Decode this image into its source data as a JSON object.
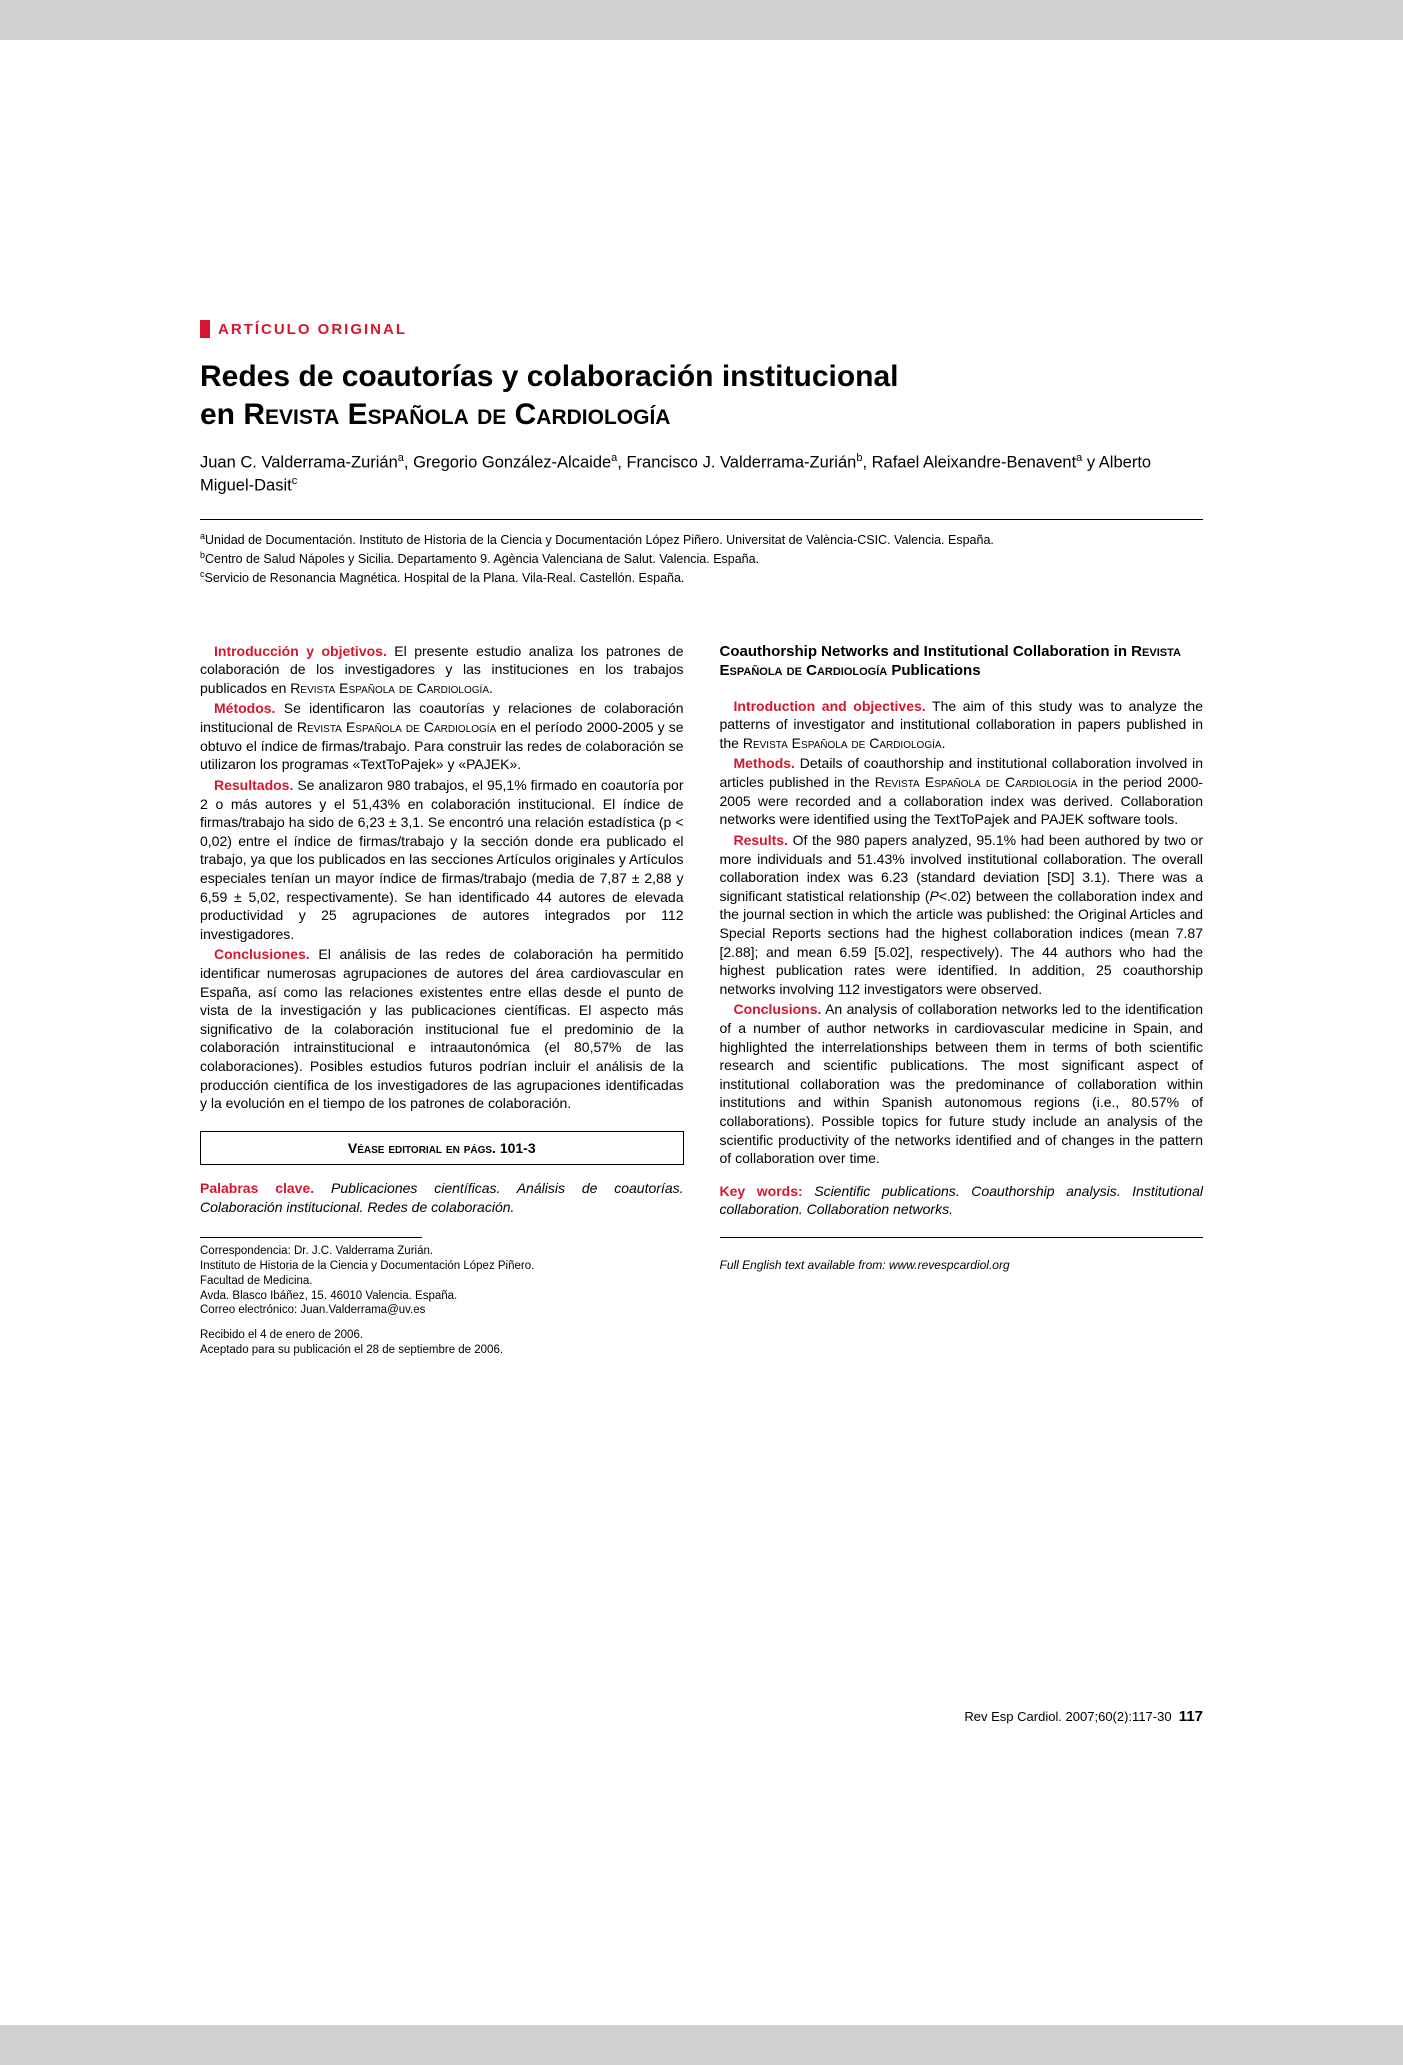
{
  "section_label": "ARTÍCULO ORIGINAL",
  "title_line1": "Redes de coautorías y colaboración institucional",
  "title_line2_prefix": "en ",
  "title_line2_journal": "Revista Española de Cardiología",
  "authors_html": "Juan C. Valderrama-Zurián<sup>a</sup>, Gregorio González-Alcaide<sup>a</sup>, Francisco J. Valderrama-Zurián<sup>b</sup>, Rafael Aleixandre-Benavent<sup>a</sup> y Alberto Miguel-Dasit<sup>c</sup>",
  "affiliations": [
    "<sup>a</sup>Unidad de Documentación. Instituto de Historia de la Ciencia y Documentación López Piñero. Universitat de València-CSIC. Valencia. España.",
    "<sup>b</sup>Centro de Salud Nápoles y Sicilia. Departamento 9. Agència Valenciana de Salut. Valencia. España.",
    "<sup>c</sup>Servicio de Resonancia Magnética. Hospital de la Plana. Vila-Real. Castellón. España."
  ],
  "es": {
    "intro_label": "Introducción y objetivos.",
    "intro_text": " El presente estudio analiza los patrones de colaboración de los investigadores y las instituciones en los trabajos publicados en R<span class='smallcaps'>evista</span> E<span class='smallcaps'>spañola de</span> C<span class='smallcaps'>ardiología</span>.",
    "methods_label": "Métodos.",
    "methods_text": " Se identificaron las coautorías y relaciones de colaboración institucional de R<span class='smallcaps'>evista</span> E<span class='smallcaps'>spañola de</span> C<span class='smallcaps'>ardiología</span> en el período 2000-2005 y se obtuvo el índice de firmas/trabajo. Para construir las redes de colaboración se utilizaron los programas «TextToPajek» y «PAJEK».",
    "results_label": "Resultados.",
    "results_text": " Se analizaron 980 trabajos, el 95,1% firmado en coautoría por 2 o más autores y el 51,43% en colaboración institucional. El índice de firmas/trabajo ha sido de 6,23 ± 3,1. Se encontró una relación estadística (p < 0,02) entre el índice de firmas/trabajo y la sección donde era publicado el trabajo, ya que los publicados en las secciones Artículos originales y Artículos especiales tenían un mayor índice de firmas/trabajo (media de 7,87 ± 2,88 y 6,59 ± 5,02, respectivamente). Se han identificado 44 autores de elevada productividad y 25 agrupaciones de autores integrados por 112 investigadores.",
    "concl_label": "Conclusiones.",
    "concl_text": " El análisis de las redes de colaboración ha permitido identificar numerosas agrupaciones de autores del área cardiovascular en España, así como las relaciones existentes entre ellas desde el punto de vista de la investigación y las publicaciones científicas. El aspecto más significativo de la colaboración institucional fue el predominio de la colaboración intrainstitucional e intraautonómica (el 80,57% de las colaboraciones). Posibles estudios futuros podrían incluir el análisis de la producción científica de los investigadores de las agrupaciones identificadas y la evolución en el tiempo de los patrones de colaboración.",
    "editorial_box": "Véase editorial en págs. 101-3",
    "keywords_label": "Palabras clave.",
    "keywords_text": " Publicaciones científicas. Análisis de coautorías. Colaboración institucional. Redes de colaboración."
  },
  "en": {
    "title": "Coauthorship Networks and Institutional Collaboration in R<span class='smallcaps'>evista</span> E<span class='smallcaps'>spañola de</span> C<span class='smallcaps'>ardiología</span> Publications",
    "intro_label": "Introduction and objectives.",
    "intro_text": " The aim of this study was to analyze the patterns of investigator and institutional collaboration in papers published in the R<span class='smallcaps'>evista</span> E<span class='smallcaps'>spañola de</span> C<span class='smallcaps'>ardiología</span>.",
    "methods_label": "Methods.",
    "methods_text": " Details of coauthorship and institutional collaboration involved in articles published in the R<span class='smallcaps'>evista</span> E<span class='smallcaps'>spañola de</span> C<span class='smallcaps'>ardiología</span> in the period 2000-2005 were recorded and a collaboration index was derived. Collaboration networks were identified using the TextToPajek and PAJEK software tools.",
    "results_label": "Results.",
    "results_text": " Of the 980 papers analyzed, 95.1% had been authored by two or more individuals and 51.43% involved institutional collaboration. The overall collaboration index was 6.23 (standard deviation [SD] 3.1). There was a significant statistical relationship (<i>P</i>&lt;.02) between the collaboration index and the journal section in which the article was published: the Original Articles and Special Reports sections had the highest collaboration indices (mean 7.87 [2.88]; and mean 6.59 [5.02], respectively). The 44 authors who had the highest publication rates were identified. In addition, 25 coauthorship networks involving 112 investigators were observed.",
    "concl_label": "Conclusions.",
    "concl_text": " An analysis of collaboration networks led to the identification of a number of author networks in cardiovascular medicine in Spain, and highlighted the interrelationships between them in terms of both scientific research and scientific publications. The most significant aspect of institutional collaboration was the predominance of collaboration within institutions and within Spanish autonomous regions (i.e., 80.57% of collaborations). Possible topics for future study include an analysis of the scientific productivity of the networks identified and of changes in the pattern of collaboration over time.",
    "keywords_label": "Key words:",
    "keywords_text": " Scientific publications. Coauthorship analysis. Institutional collaboration. Collaboration networks.",
    "english_note": "Full English text available from: www.revespcardiol.org"
  },
  "correspondence": [
    "Correspondencia: Dr. J.C. Valderrama Zurián.",
    "Instituto de Historia de la Ciencia y Documentación López Piñero.",
    "Facultad de Medicina.",
    "Avda. Blasco Ibáñez, 15. 46010 Valencia. España.",
    "Correo electrónico: Juan.Valderrama@uv.es",
    "",
    "Recibido el 4 de enero de 2006.",
    "Aceptado para su publicación el 28 de septiembre de 2006."
  ],
  "footer_citation": "Rev Esp Cardiol. 2007;60(2):117-30",
  "footer_page": "117",
  "colors": {
    "accent": "#d4172f",
    "text": "#000000",
    "page_bg": "#ffffff",
    "outer_bg": "#d0d0d0"
  }
}
